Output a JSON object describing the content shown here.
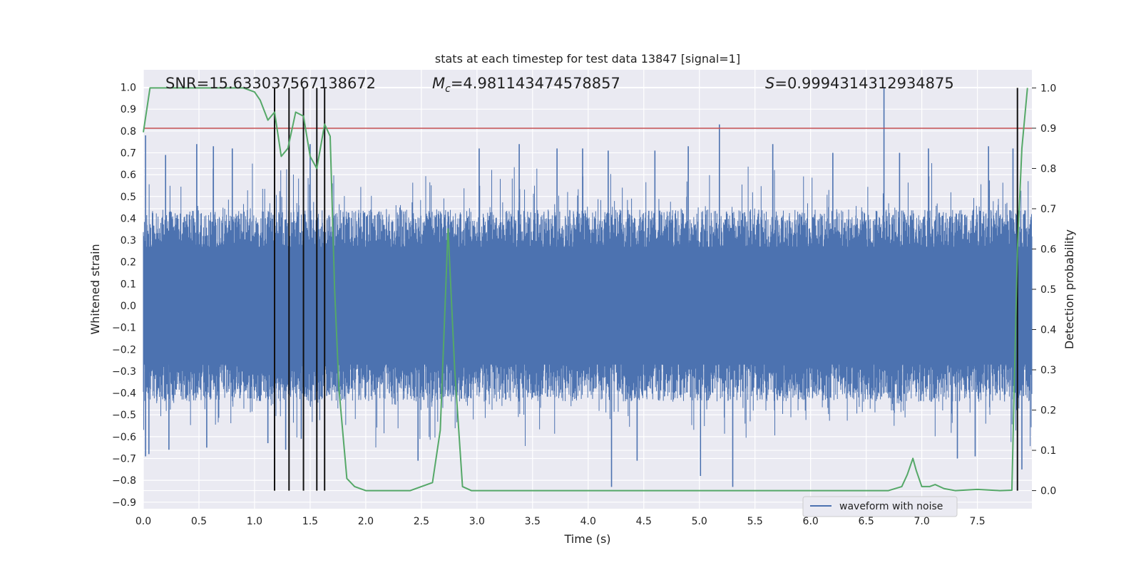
{
  "chart_data": {
    "type": "line",
    "title": "stats at each timestep for test data 13847 [signal=1]",
    "xlabel": "Time (s)",
    "ylabel": "Whitened strain",
    "y2label": "Detection probability",
    "xlim": [
      0.0,
      7.99
    ],
    "ylim": [
      -0.93,
      1.08
    ],
    "y2lim": [
      -0.045,
      1.045
    ],
    "grid": true,
    "x_ticks": [
      "0.0",
      "0.5",
      "1.0",
      "1.5",
      "2.0",
      "2.5",
      "3.0",
      "3.5",
      "4.0",
      "4.5",
      "5.0",
      "5.5",
      "6.0",
      "6.5",
      "7.0",
      "7.5"
    ],
    "y_ticks": [
      "1.0",
      "0.9",
      "0.8",
      "0.7",
      "0.6",
      "0.5",
      "0.4",
      "0.3",
      "0.2",
      "0.1",
      "0.0",
      "−0.1",
      "−0.2",
      "−0.3",
      "−0.4",
      "−0.5",
      "−0.6",
      "−0.7",
      "−0.8",
      "−0.9"
    ],
    "y2_ticks": [
      "1.0",
      "0.9",
      "0.8",
      "0.7",
      "0.6",
      "0.5",
      "0.4",
      "0.3",
      "0.2",
      "0.1",
      "0.0"
    ],
    "annotations": {
      "snr": "SNR=15.633037567138672",
      "mc_symbol": "M",
      "mc_sub": "c",
      "mc_value": "=4.981143474578857",
      "s_symbol": "S",
      "s_value": "=0.9994314312934875"
    },
    "threshold": {
      "value": 0.9,
      "axis": "y2",
      "color": "#c44e52"
    },
    "vlines": [
      1.18,
      1.31,
      1.44,
      1.56,
      1.63,
      7.86
    ],
    "series": [
      {
        "name": "waveform with noise",
        "axis": "y1",
        "color": "#4c72b0",
        "band": 0.44,
        "spikes": [
          [
            0.02,
            0.78
          ],
          [
            0.02,
            -0.69
          ],
          [
            0.05,
            -0.68
          ],
          [
            0.2,
            0.69
          ],
          [
            0.23,
            -0.66
          ],
          [
            0.48,
            0.74
          ],
          [
            0.57,
            -0.65
          ],
          [
            0.63,
            0.73
          ],
          [
            0.8,
            0.72
          ],
          [
            1.12,
            -0.63
          ],
          [
            1.28,
            -0.66
          ],
          [
            1.42,
            -0.61
          ],
          [
            1.5,
            0.74
          ],
          [
            2.47,
            -0.71
          ],
          [
            2.74,
            0.43
          ],
          [
            3.02,
            0.72
          ],
          [
            3.38,
            0.74
          ],
          [
            3.72,
            0.72
          ],
          [
            3.95,
            0.72
          ],
          [
            4.18,
            0.71
          ],
          [
            4.21,
            -0.83
          ],
          [
            4.44,
            -0.71
          ],
          [
            4.6,
            0.71
          ],
          [
            4.9,
            0.73
          ],
          [
            5.01,
            -0.78
          ],
          [
            5.18,
            0.83
          ],
          [
            5.3,
            -0.83
          ],
          [
            5.66,
            0.74
          ],
          [
            6.2,
            0.7
          ],
          [
            6.66,
            1.0
          ],
          [
            6.8,
            0.7
          ],
          [
            7.06,
            0.72
          ],
          [
            7.32,
            -0.7
          ],
          [
            7.48,
            -0.69
          ],
          [
            7.6,
            0.73
          ],
          [
            7.82,
            0.72
          ],
          [
            7.9,
            -0.75
          ]
        ]
      },
      {
        "name": "detection probability",
        "axis": "y2",
        "color": "#55a868",
        "x": [
          0.0,
          0.06,
          0.12,
          0.5,
          0.9,
          1.0,
          1.05,
          1.12,
          1.18,
          1.24,
          1.3,
          1.37,
          1.44,
          1.5,
          1.56,
          1.63,
          1.68,
          1.72,
          1.76,
          1.83,
          1.9,
          2.0,
          2.2,
          2.4,
          2.6,
          2.67,
          2.74,
          2.8,
          2.87,
          2.95,
          3.2,
          4.0,
          5.0,
          6.0,
          6.7,
          6.82,
          6.87,
          6.92,
          6.95,
          7.0,
          7.07,
          7.12,
          7.2,
          7.3,
          7.5,
          7.7,
          7.81,
          7.86,
          7.9,
          7.95
        ],
        "y": [
          0.89,
          1.0,
          1.0,
          1.0,
          1.0,
          0.99,
          0.97,
          0.92,
          0.94,
          0.83,
          0.85,
          0.94,
          0.93,
          0.83,
          0.8,
          0.91,
          0.88,
          0.5,
          0.25,
          0.03,
          0.01,
          0.0,
          0.0,
          0.0,
          0.02,
          0.15,
          0.65,
          0.3,
          0.01,
          0.0,
          0.0,
          0.0,
          0.0,
          0.0,
          0.0,
          0.01,
          0.04,
          0.08,
          0.05,
          0.01,
          0.01,
          0.015,
          0.005,
          0.0,
          0.003,
          0.0,
          0.001,
          0.6,
          0.85,
          1.0
        ]
      }
    ],
    "legend": {
      "placement": "lower-right",
      "entries": [
        "waveform with noise"
      ]
    }
  }
}
